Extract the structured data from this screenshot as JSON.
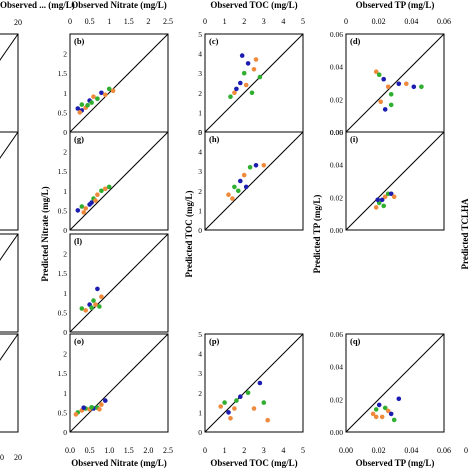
{
  "colors": {
    "blue": "#1c1cb0",
    "green": "#2fae2f",
    "orange": "#ef8a3c",
    "line": "#000000"
  },
  "chart_data": [
    {
      "type": "scatter",
      "panel_label": "",
      "top_xlabel": "Observed ... (mg/L)",
      "top_ticks": [
        "",
        "20"
      ],
      "cut_panels": [
        "",
        "",
        "",
        ""
      ],
      "bottom_xlabel": "",
      "bottom_ticks": [
        "0",
        "",
        "20"
      ]
    },
    {
      "type": "scatter",
      "panel_label": "(b)",
      "top_xlabel": "Observed Nitrate (mg/L)",
      "top_ticks": [
        "0",
        "0.5",
        "1",
        "1.5",
        "2",
        "2.5"
      ],
      "xlim": [
        0,
        2.5
      ],
      "bottom_xlabel": "Observed Nitrate (mg/L)",
      "bottom_ticks": [
        "0.0",
        "0.5",
        "1.0",
        "1.5",
        "2.0",
        "2.5"
      ],
      "ylabel": "Predicted Nitrate (mg/L)",
      "rows": [
        {
          "label": "(b)",
          "points": [
            [
              0.2,
              0.6,
              "blue"
            ],
            [
              0.3,
              0.7,
              "green"
            ],
            [
              0.4,
              0.62,
              "orange"
            ],
            [
              0.5,
              0.8,
              "blue"
            ],
            [
              0.55,
              0.75,
              "green"
            ],
            [
              0.6,
              0.9,
              "orange"
            ],
            [
              0.7,
              0.85,
              "green"
            ],
            [
              0.8,
              1.0,
              "blue"
            ],
            [
              0.9,
              0.95,
              "orange"
            ],
            [
              1.0,
              1.1,
              "green"
            ],
            [
              1.1,
              1.05,
              "orange"
            ],
            [
              0.3,
              0.55,
              "blue"
            ],
            [
              0.45,
              0.68,
              "green"
            ],
            [
              0.25,
              0.5,
              "orange"
            ]
          ]
        },
        {
          "label": "(g)",
          "points": [
            [
              0.2,
              0.5,
              "blue"
            ],
            [
              0.3,
              0.6,
              "green"
            ],
            [
              0.4,
              0.55,
              "orange"
            ],
            [
              0.5,
              0.65,
              "blue"
            ],
            [
              0.6,
              0.8,
              "green"
            ],
            [
              0.7,
              0.9,
              "orange"
            ],
            [
              0.8,
              1.0,
              "green"
            ],
            [
              0.9,
              1.05,
              "orange"
            ],
            [
              1.0,
              1.1,
              "green"
            ],
            [
              0.35,
              0.45,
              "orange"
            ],
            [
              0.55,
              0.7,
              "blue"
            ],
            [
              0.65,
              0.75,
              "orange"
            ]
          ]
        },
        {
          "label": "(l)",
          "points": [
            [
              0.3,
              0.6,
              "green"
            ],
            [
              0.4,
              0.55,
              "orange"
            ],
            [
              0.5,
              0.7,
              "blue"
            ],
            [
              0.6,
              0.8,
              "green"
            ],
            [
              0.7,
              1.1,
              "blue"
            ],
            [
              0.8,
              0.9,
              "orange"
            ],
            [
              0.75,
              0.65,
              "green"
            ],
            [
              0.65,
              0.7,
              "orange"
            ],
            [
              0.55,
              0.62,
              "green"
            ]
          ]
        },
        {
          "label": "(o)",
          "points": [
            [
              0.2,
              0.5,
              "green"
            ],
            [
              0.3,
              0.55,
              "orange"
            ],
            [
              0.4,
              0.6,
              "green"
            ],
            [
              0.5,
              0.58,
              "orange"
            ],
            [
              0.6,
              0.6,
              "blue"
            ],
            [
              0.7,
              0.62,
              "green"
            ],
            [
              0.8,
              0.7,
              "orange"
            ],
            [
              0.9,
              0.8,
              "blue"
            ],
            [
              0.15,
              0.45,
              "orange"
            ],
            [
              0.35,
              0.62,
              "blue"
            ],
            [
              0.55,
              0.63,
              "green"
            ],
            [
              0.75,
              0.58,
              "orange"
            ]
          ]
        }
      ]
    },
    {
      "type": "scatter",
      "panel_label": "(c)",
      "top_xlabel": "Observed TOC (mg/L)",
      "top_ticks": [
        "0",
        "1",
        "2",
        "3",
        "4",
        "5"
      ],
      "xlim": [
        0,
        5
      ],
      "bottom_xlabel": "Observed TOC (mg/L)",
      "bottom_ticks": [
        "0",
        "1",
        "2",
        "3",
        "4",
        "5"
      ],
      "ylabel": "Predicted TOC (mg/L)",
      "yticks": [
        "0",
        "1",
        "2",
        "3",
        "4",
        "5"
      ],
      "rows": [
        {
          "label": "(c)",
          "points": [
            [
              1.3,
              1.8,
              "green"
            ],
            [
              1.5,
              2.0,
              "orange"
            ],
            [
              1.8,
              2.5,
              "blue"
            ],
            [
              2.0,
              3.0,
              "green"
            ],
            [
              2.2,
              3.5,
              "blue"
            ],
            [
              2.5,
              3.2,
              "orange"
            ],
            [
              2.8,
              2.8,
              "green"
            ],
            [
              1.6,
              2.2,
              "blue"
            ],
            [
              2.1,
              2.4,
              "orange"
            ],
            [
              2.4,
              2.0,
              "green"
            ],
            [
              1.9,
              3.9,
              "blue"
            ],
            [
              2.6,
              3.7,
              "orange"
            ]
          ]
        },
        {
          "label": "(h)",
          "points": [
            [
              1.2,
              1.8,
              "orange"
            ],
            [
              1.5,
              2.2,
              "green"
            ],
            [
              1.8,
              2.5,
              "blue"
            ],
            [
              2.0,
              2.8,
              "orange"
            ],
            [
              2.3,
              3.2,
              "green"
            ],
            [
              2.6,
              3.3,
              "blue"
            ],
            [
              3.0,
              3.3,
              "orange"
            ],
            [
              1.7,
              2.0,
              "green"
            ],
            [
              2.1,
              2.2,
              "blue"
            ],
            [
              1.4,
              1.6,
              "orange"
            ]
          ]
        },
        {
          "label": "",
          "points": []
        },
        {
          "label": "(p)",
          "points": [
            [
              0.8,
              1.3,
              "orange"
            ],
            [
              1.0,
              1.5,
              "green"
            ],
            [
              1.2,
              1.0,
              "blue"
            ],
            [
              1.5,
              1.2,
              "orange"
            ],
            [
              1.8,
              1.8,
              "blue"
            ],
            [
              2.2,
              2.0,
              "green"
            ],
            [
              2.8,
              2.5,
              "blue"
            ],
            [
              3.0,
              1.5,
              "green"
            ],
            [
              1.3,
              0.7,
              "orange"
            ],
            [
              2.5,
              1.2,
              "orange"
            ],
            [
              1.6,
              1.6,
              "green"
            ],
            [
              3.2,
              0.6,
              "orange"
            ]
          ]
        }
      ]
    },
    {
      "type": "scatter",
      "panel_label": "(d)",
      "top_xlabel": "Observed TP (mg/L)",
      "top_ticks": [
        "0",
        "0.02",
        "0.04",
        "0.06"
      ],
      "xlim": [
        0,
        0.065
      ],
      "bottom_xlabel": "Observed TP (mg/L)",
      "bottom_ticks": [
        "0.00",
        "0.02",
        "0.04",
        "0.06"
      ],
      "ylabel": "Predicted TP (mg/L)",
      "yticks": [
        "0.00",
        "0.02",
        "0.04",
        "0.06"
      ],
      "rows": [
        {
          "label": "(d)",
          "points": [
            [
              0.02,
              0.04,
              "orange"
            ],
            [
              0.022,
              0.038,
              "green"
            ],
            [
              0.025,
              0.035,
              "blue"
            ],
            [
              0.028,
              0.03,
              "orange"
            ],
            [
              0.03,
              0.025,
              "green"
            ],
            [
              0.035,
              0.032,
              "blue"
            ],
            [
              0.04,
              0.032,
              "orange"
            ],
            [
              0.045,
              0.03,
              "blue"
            ],
            [
              0.05,
              0.03,
              "green"
            ],
            [
              0.023,
              0.02,
              "orange"
            ],
            [
              0.026,
              0.015,
              "blue"
            ],
            [
              0.03,
              0.018,
              "green"
            ]
          ]
        },
        {
          "label": "(i)",
          "points": [
            [
              0.02,
              0.015,
              "orange"
            ],
            [
              0.022,
              0.018,
              "green"
            ],
            [
              0.024,
              0.02,
              "blue"
            ],
            [
              0.026,
              0.022,
              "orange"
            ],
            [
              0.028,
              0.024,
              "green"
            ],
            [
              0.03,
              0.024,
              "blue"
            ],
            [
              0.032,
              0.022,
              "orange"
            ],
            [
              0.021,
              0.02,
              "blue"
            ],
            [
              0.025,
              0.016,
              "green"
            ]
          ]
        },
        {
          "label": "",
          "points": []
        },
        {
          "label": "(q)",
          "points": [
            [
              0.018,
              0.012,
              "orange"
            ],
            [
              0.02,
              0.015,
              "green"
            ],
            [
              0.022,
              0.018,
              "blue"
            ],
            [
              0.024,
              0.01,
              "orange"
            ],
            [
              0.026,
              0.016,
              "green"
            ],
            [
              0.028,
              0.014,
              "orange"
            ],
            [
              0.03,
              0.012,
              "blue"
            ],
            [
              0.035,
              0.022,
              "blue"
            ],
            [
              0.032,
              0.008,
              "green"
            ],
            [
              0.02,
              0.01,
              "orange"
            ]
          ]
        }
      ]
    },
    {
      "type": "scatter",
      "panel_label": "",
      "ylabel": "Predicted TCLHA",
      "bottom_ticks": [
        "0"
      ]
    }
  ]
}
